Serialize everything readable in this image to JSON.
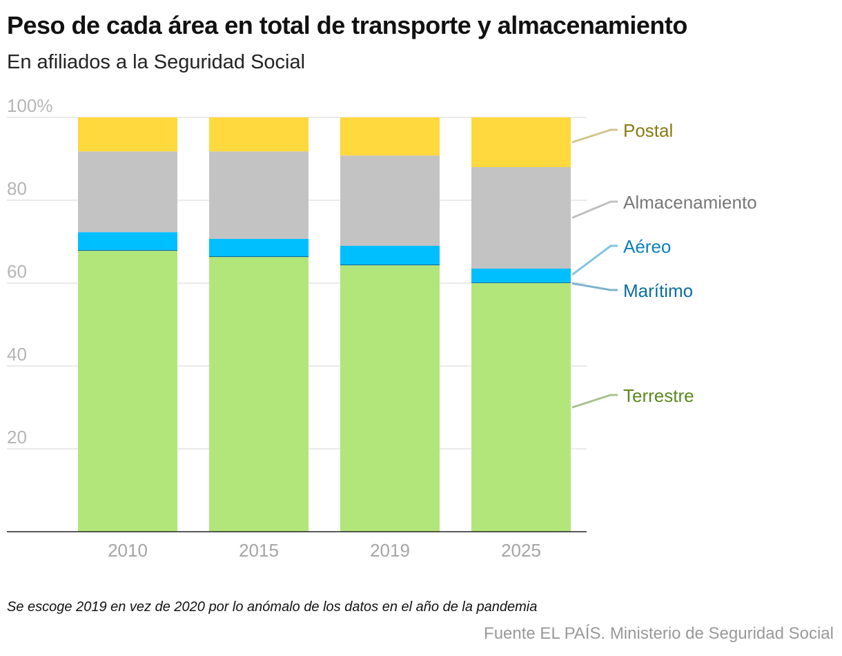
{
  "title": "Peso de cada área en total de transporte y almacenamiento",
  "subtitle": "En afiliados a la Seguridad Social",
  "note": "Se escoge 2019 en vez de 2020 por lo anómalo de los datos en el año de la pandemia",
  "source": "Fuente EL PAÍS. Ministerio de Seguridad Social",
  "chart_data": {
    "type": "bar",
    "stacked": true,
    "categories": [
      "2010",
      "2015",
      "2019",
      "2025"
    ],
    "ylim": [
      0,
      100
    ],
    "yticks": [
      {
        "value": 20,
        "label": "20"
      },
      {
        "value": 40,
        "label": "40"
      },
      {
        "value": 60,
        "label": "60"
      },
      {
        "value": 80,
        "label": "80"
      },
      {
        "value": 100,
        "label": "100%"
      }
    ],
    "grid": true,
    "legend": "right, direct labels",
    "series": [
      {
        "name": "Terrestre",
        "values": [
          67.8,
          66.3,
          64.3,
          60.0
        ],
        "color": "#b3e67a",
        "label_color": "#5a8a1e",
        "line_color": "#a8c090"
      },
      {
        "name": "Marítimo",
        "values": [
          0.2,
          0.2,
          0.2,
          0.2
        ],
        "color": "#0a6e9e",
        "label_color": "#0a6e9e",
        "line_color": "#7fb3cc"
      },
      {
        "name": "Aéreo",
        "values": [
          4.3,
          4.2,
          4.5,
          3.3
        ],
        "color": "#00bfff",
        "label_color": "#0a82b8",
        "line_color": "#80c4e6"
      },
      {
        "name": "Almacenamiento",
        "values": [
          19.5,
          21.1,
          21.8,
          24.5
        ],
        "color": "#c3c3c3",
        "label_color": "#777777",
        "line_color": "#c0c0c0"
      },
      {
        "name": "Postal",
        "values": [
          8.2,
          8.2,
          9.2,
          12.0
        ],
        "color": "#ffd93d",
        "label_color": "#8a7a10",
        "line_color": "#d4c48a"
      }
    ]
  }
}
